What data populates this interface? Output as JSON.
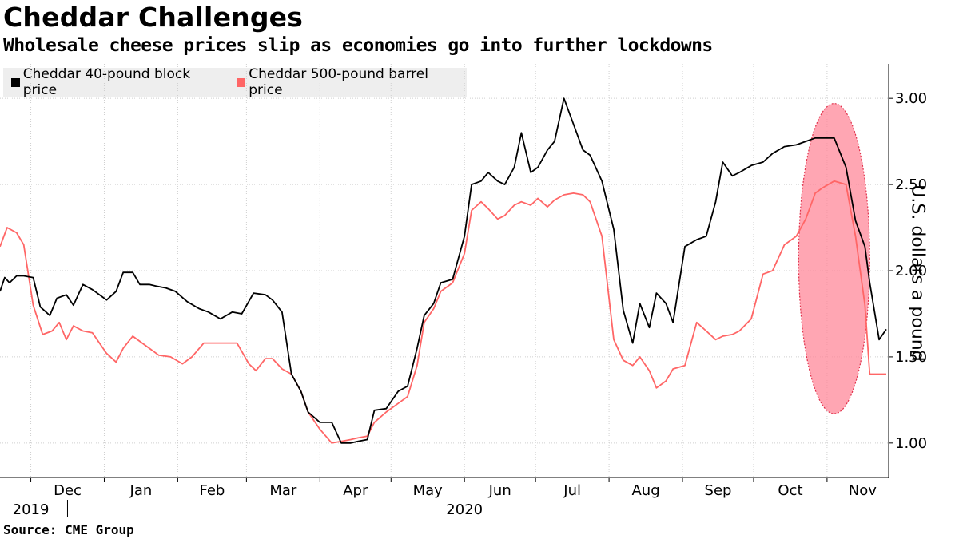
{
  "header": {
    "title": "Cheddar Challenges",
    "subtitle": "Wholesale cheese prices slip as economies go into further lockdowns"
  },
  "source": "Source: CME Group",
  "chart_data": {
    "type": "line",
    "title": "Cheddar Challenges",
    "subtitle": "Wholesale cheese prices slip as economies go into further lockdowns",
    "ylabel": "U.S. dollars a pound",
    "ylim": [
      0.8,
      3.2
    ],
    "yticks": [
      1.0,
      1.5,
      2.0,
      2.5,
      3.0
    ],
    "ytick_labels": [
      "1.00",
      "1.50",
      "2.00",
      "2.50",
      "3.00"
    ],
    "xlim": [
      "2019-11-18",
      "2020-11-27"
    ],
    "x_tick_dates": [
      "2019-12-01",
      "2020-01-01",
      "2020-02-01",
      "2020-03-01",
      "2020-04-01",
      "2020-05-01",
      "2020-06-01",
      "2020-07-01",
      "2020-08-01",
      "2020-09-01",
      "2020-10-01",
      "2020-11-01"
    ],
    "x_month_labels": [
      "Dec",
      "Jan",
      "Feb",
      "Mar",
      "Apr",
      "May",
      "Jun",
      "Jul",
      "Aug",
      "Sep",
      "Oct",
      "Nov"
    ],
    "x_year_labels": [
      {
        "label": "2019",
        "date": "2019-12-01"
      },
      {
        "label": "2020",
        "date": "2020-06-01"
      }
    ],
    "grid": true,
    "legend_position": "top-left",
    "series": [
      {
        "name": "Cheddar 40-pound block price",
        "color": "#000000",
        "x": [
          "2019-11-18",
          "2019-11-20",
          "2019-11-22",
          "2019-11-25",
          "2019-11-28",
          "2019-12-02",
          "2019-12-05",
          "2019-12-09",
          "2019-12-12",
          "2019-12-16",
          "2019-12-19",
          "2019-12-23",
          "2019-12-27",
          "2020-01-02",
          "2020-01-06",
          "2020-01-09",
          "2020-01-13",
          "2020-01-16",
          "2020-01-20",
          "2020-01-23",
          "2020-01-27",
          "2020-01-31",
          "2020-02-05",
          "2020-02-10",
          "2020-02-14",
          "2020-02-19",
          "2020-02-24",
          "2020-02-28",
          "2020-03-04",
          "2020-03-09",
          "2020-03-12",
          "2020-03-16",
          "2020-03-20",
          "2020-03-24",
          "2020-03-27",
          "2020-04-01",
          "2020-04-06",
          "2020-04-10",
          "2020-04-14",
          "2020-04-17",
          "2020-04-21",
          "2020-04-24",
          "2020-04-29",
          "2020-05-04",
          "2020-05-08",
          "2020-05-12",
          "2020-05-15",
          "2020-05-19",
          "2020-05-22",
          "2020-05-27",
          "2020-06-01",
          "2020-06-04",
          "2020-06-08",
          "2020-06-11",
          "2020-06-15",
          "2020-06-18",
          "2020-06-22",
          "2020-06-25",
          "2020-06-29",
          "2020-07-02",
          "2020-07-06",
          "2020-07-09",
          "2020-07-13",
          "2020-07-17",
          "2020-07-21",
          "2020-07-24",
          "2020-07-29",
          "2020-08-03",
          "2020-08-07",
          "2020-08-11",
          "2020-08-14",
          "2020-08-18",
          "2020-08-21",
          "2020-08-25",
          "2020-08-28",
          "2020-09-02",
          "2020-09-07",
          "2020-09-11",
          "2020-09-15",
          "2020-09-18",
          "2020-09-22",
          "2020-09-25",
          "2020-09-30",
          "2020-10-05",
          "2020-10-09",
          "2020-10-14",
          "2020-10-19",
          "2020-10-23",
          "2020-10-27",
          "2020-10-30",
          "2020-11-04",
          "2020-11-09",
          "2020-11-13",
          "2020-11-17",
          "2020-11-19",
          "2020-11-23",
          "2020-11-26"
        ],
        "values": [
          1.88,
          1.96,
          1.93,
          1.97,
          1.97,
          1.96,
          1.79,
          1.74,
          1.84,
          1.86,
          1.8,
          1.92,
          1.89,
          1.83,
          1.88,
          1.99,
          1.99,
          1.92,
          1.92,
          1.91,
          1.9,
          1.88,
          1.82,
          1.78,
          1.76,
          1.72,
          1.76,
          1.75,
          1.87,
          1.86,
          1.83,
          1.76,
          1.4,
          1.3,
          1.18,
          1.12,
          1.12,
          1.0,
          1.0,
          1.01,
          1.02,
          1.19,
          1.2,
          1.3,
          1.33,
          1.55,
          1.74,
          1.81,
          1.93,
          1.95,
          2.2,
          2.5,
          2.52,
          2.57,
          2.52,
          2.5,
          2.6,
          2.8,
          2.57,
          2.6,
          2.7,
          2.75,
          3.0,
          2.85,
          2.7,
          2.67,
          2.52,
          2.24,
          1.77,
          1.58,
          1.81,
          1.67,
          1.87,
          1.81,
          1.7,
          2.14,
          2.18,
          2.2,
          2.4,
          2.63,
          2.55,
          2.57,
          2.61,
          2.63,
          2.68,
          2.72,
          2.73,
          2.75,
          2.77,
          2.77,
          2.77,
          2.6,
          2.29,
          2.14,
          1.93,
          1.6,
          1.66
        ]
      },
      {
        "name": "Cheddar 500-pound barrel price",
        "color": "#ff6666",
        "x": [
          "2019-11-18",
          "2019-11-21",
          "2019-11-25",
          "2019-11-28",
          "2019-12-02",
          "2019-12-06",
          "2019-12-10",
          "2019-12-13",
          "2019-12-16",
          "2019-12-19",
          "2019-12-23",
          "2019-12-27",
          "2020-01-02",
          "2020-01-06",
          "2020-01-09",
          "2020-01-13",
          "2020-01-16",
          "2020-01-20",
          "2020-01-24",
          "2020-01-29",
          "2020-02-03",
          "2020-02-07",
          "2020-02-12",
          "2020-02-17",
          "2020-02-21",
          "2020-02-26",
          "2020-03-02",
          "2020-03-05",
          "2020-03-09",
          "2020-03-12",
          "2020-03-16",
          "2020-03-20",
          "2020-03-24",
          "2020-03-27",
          "2020-04-01",
          "2020-04-06",
          "2020-04-10",
          "2020-04-14",
          "2020-04-17",
          "2020-04-21",
          "2020-04-24",
          "2020-04-29",
          "2020-05-04",
          "2020-05-08",
          "2020-05-12",
          "2020-05-15",
          "2020-05-19",
          "2020-05-22",
          "2020-05-27",
          "2020-06-01",
          "2020-06-04",
          "2020-06-08",
          "2020-06-11",
          "2020-06-15",
          "2020-06-18",
          "2020-06-22",
          "2020-06-25",
          "2020-06-29",
          "2020-07-02",
          "2020-07-06",
          "2020-07-09",
          "2020-07-13",
          "2020-07-17",
          "2020-07-21",
          "2020-07-24",
          "2020-07-29",
          "2020-08-03",
          "2020-08-07",
          "2020-08-11",
          "2020-08-14",
          "2020-08-18",
          "2020-08-21",
          "2020-08-25",
          "2020-08-28",
          "2020-09-02",
          "2020-09-07",
          "2020-09-11",
          "2020-09-15",
          "2020-09-18",
          "2020-09-22",
          "2020-09-25",
          "2020-09-30",
          "2020-10-05",
          "2020-10-09",
          "2020-10-14",
          "2020-10-19",
          "2020-10-23",
          "2020-10-27",
          "2020-10-30",
          "2020-11-04",
          "2020-11-09",
          "2020-11-13",
          "2020-11-17",
          "2020-11-19",
          "2020-11-23",
          "2020-11-26"
        ],
        "values": [
          2.14,
          2.25,
          2.22,
          2.15,
          1.8,
          1.63,
          1.65,
          1.7,
          1.6,
          1.68,
          1.65,
          1.64,
          1.52,
          1.47,
          1.55,
          1.62,
          1.59,
          1.55,
          1.51,
          1.5,
          1.46,
          1.5,
          1.58,
          1.58,
          1.58,
          1.58,
          1.46,
          1.42,
          1.49,
          1.49,
          1.43,
          1.4,
          1.3,
          1.18,
          1.08,
          1.0,
          1.01,
          1.02,
          1.03,
          1.04,
          1.12,
          1.18,
          1.23,
          1.27,
          1.45,
          1.7,
          1.78,
          1.88,
          1.93,
          2.1,
          2.35,
          2.4,
          2.36,
          2.3,
          2.32,
          2.38,
          2.4,
          2.38,
          2.42,
          2.37,
          2.41,
          2.44,
          2.45,
          2.44,
          2.4,
          2.2,
          1.6,
          1.48,
          1.45,
          1.5,
          1.42,
          1.32,
          1.36,
          1.43,
          1.45,
          1.7,
          1.65,
          1.6,
          1.62,
          1.63,
          1.65,
          1.72,
          1.98,
          2.0,
          2.15,
          2.2,
          2.3,
          2.45,
          2.48,
          2.52,
          2.5,
          2.2,
          1.8,
          1.4,
          1.4,
          1.4
        ]
      }
    ],
    "annotations": [
      {
        "type": "ellipse",
        "color": "#ff8899",
        "x_center": "2020-11-04",
        "y_center": 2.07,
        "x_radius_days": 15,
        "y_radius": 0.9
      }
    ]
  }
}
